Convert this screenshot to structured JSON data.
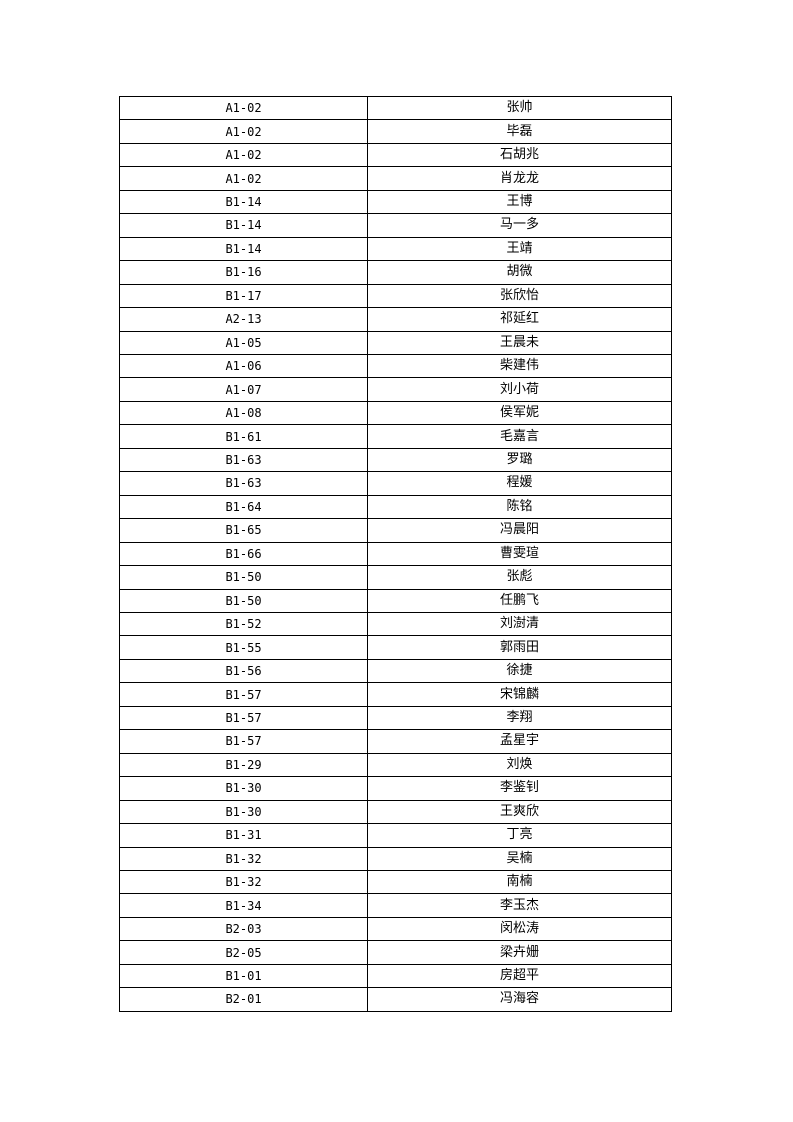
{
  "table": {
    "rows": [
      [
        "A1-02",
        "张帅"
      ],
      [
        "A1-02",
        "毕磊"
      ],
      [
        "A1-02",
        "石胡兆"
      ],
      [
        "A1-02",
        "肖龙龙"
      ],
      [
        "B1-14",
        "王博"
      ],
      [
        "B1-14",
        "马一多"
      ],
      [
        "B1-14",
        "王靖"
      ],
      [
        "B1-16",
        "胡微"
      ],
      [
        "B1-17",
        "张欣怡"
      ],
      [
        "A2-13",
        "祁延红"
      ],
      [
        "A1-05",
        "王晨未"
      ],
      [
        "A1-06",
        "柴建伟"
      ],
      [
        "A1-07",
        "刘小荷"
      ],
      [
        "A1-08",
        "侯军妮"
      ],
      [
        "B1-61",
        "毛嘉言"
      ],
      [
        "B1-63",
        "罗璐"
      ],
      [
        "B1-63",
        "程媛"
      ],
      [
        "B1-64",
        "陈铭"
      ],
      [
        "B1-65",
        "冯晨阳"
      ],
      [
        "B1-66",
        "曹雯瑄"
      ],
      [
        "B1-50",
        "张彪"
      ],
      [
        "B1-50",
        "任鹏飞"
      ],
      [
        "B1-52",
        "刘澍清"
      ],
      [
        "B1-55",
        "郭雨田"
      ],
      [
        "B1-56",
        "徐捷"
      ],
      [
        "B1-57",
        "宋锦麟"
      ],
      [
        "B1-57",
        "李翔"
      ],
      [
        "B1-57",
        "孟星宇"
      ],
      [
        "B1-29",
        "刘焕"
      ],
      [
        "B1-30",
        "李鉴钊"
      ],
      [
        "B1-30",
        "王爽欣"
      ],
      [
        "B1-31",
        "丁亮"
      ],
      [
        "B1-32",
        "吴楠"
      ],
      [
        "B1-32",
        "南楠"
      ],
      [
        "B1-34",
        "李玉杰"
      ],
      [
        "B2-03",
        "闵松涛"
      ],
      [
        "B2-05",
        "梁卉姗"
      ],
      [
        "B1-01",
        "房超平"
      ],
      [
        "B2-01",
        "冯海容"
      ]
    ]
  }
}
